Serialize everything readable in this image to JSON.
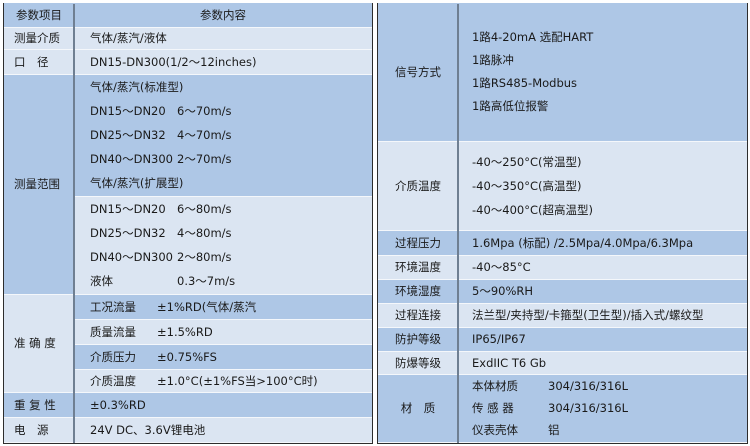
{
  "left": {
    "header": {
      "label": "参数项目",
      "content": "参数内容"
    },
    "rows": [
      {
        "label": "测量介质",
        "cells": [
          {
            "lines": [
              [
                "气体/蒸汽/液体"
              ]
            ]
          }
        ]
      },
      {
        "label": "口　径",
        "cells": [
          {
            "lines": [
              [
                "DN15-DN300(1/2～12inches)"
              ]
            ]
          }
        ]
      },
      {
        "label": "测量范围",
        "cells": [
          {
            "lines": [
              [
                "气体/蒸汽(标准型)"
              ],
              [
                "DN15～DN20",
                "6～70m/s"
              ],
              [
                "DN25～DN32",
                "4～70m/s"
              ],
              [
                "DN40～DN300",
                "2～70m/s"
              ],
              [
                "气体/蒸汽(扩展型)"
              ]
            ]
          },
          {
            "lines": [
              [
                "DN15～DN20",
                "6～80m/s"
              ],
              [
                "DN25～DN32",
                "4～80m/s"
              ],
              [
                "DN40～DN300",
                "2～80m/s"
              ],
              [
                "液体",
                "0.3～7m/s"
              ]
            ]
          }
        ]
      },
      {
        "label": "准 确 度",
        "cells": [
          {
            "lines": [
              [
                "工况流量",
                "±1%RD(气体/蒸汽"
              ]
            ]
          },
          {
            "lines": [
              [
                "质量流量",
                "±1.5%RD"
              ]
            ]
          },
          {
            "lines": [
              [
                "介质压力",
                "±0.75%FS"
              ]
            ]
          },
          {
            "lines": [
              [
                "介质温度",
                "±1.0°C(±1%FS当>100°C时)"
              ]
            ]
          }
        ]
      },
      {
        "label": "重 复 性",
        "cells": [
          {
            "lines": [
              [
                "±0.3%RD"
              ]
            ]
          }
        ]
      },
      {
        "label": "电　源",
        "cells": [
          {
            "lines": [
              [
                "24V DC、3.6V锂电池"
              ]
            ]
          }
        ]
      }
    ]
  },
  "right": {
    "rows": [
      {
        "label": "信号方式",
        "cells": [
          {
            "lines": [
              [
                "1路4-20mA 选配HART"
              ],
              [
                "1路脉冲"
              ],
              [
                "1路RS485-Modbus"
              ],
              [
                "1路高低位报警"
              ]
            ]
          }
        ]
      },
      {
        "label": "介质温度",
        "cells": [
          {
            "lines": [
              [
                "-40～250°C(常温型)"
              ],
              [
                "-40～350°C(高温型)"
              ],
              [
                "-40～400°C(超高温型)"
              ]
            ]
          }
        ]
      },
      {
        "label": "过程压力",
        "cells": [
          {
            "lines": [
              [
                "1.6Mpa (标配) /2.5Mpa/4.0Mpa/6.3Mpa"
              ]
            ]
          }
        ]
      },
      {
        "label": "环境温度",
        "cells": [
          {
            "lines": [
              [
                "-40～85°C"
              ]
            ]
          }
        ]
      },
      {
        "label": "环境湿度",
        "cells": [
          {
            "lines": [
              [
                "5～90%RH"
              ]
            ]
          }
        ]
      },
      {
        "label": "过程连接",
        "cells": [
          {
            "lines": [
              [
                "法兰型/夹持型/卡箍型(卫生型)/插入式/螺纹型"
              ]
            ]
          }
        ]
      },
      {
        "label": "防护等级",
        "cells": [
          {
            "lines": [
              [
                "IP65/IP67"
              ]
            ]
          }
        ]
      },
      {
        "label": "防爆等级",
        "cells": [
          {
            "lines": [
              [
                "ExdIIC T6 Gb"
              ]
            ]
          }
        ]
      },
      {
        "label": "材　质",
        "cells": [
          {
            "lines": [
              [
                "本体材质",
                "304/316/316L"
              ],
              [
                "传 感 器",
                "304/316/316L"
              ],
              [
                "仪表壳体",
                "铝"
              ]
            ]
          }
        ]
      }
    ]
  }
}
